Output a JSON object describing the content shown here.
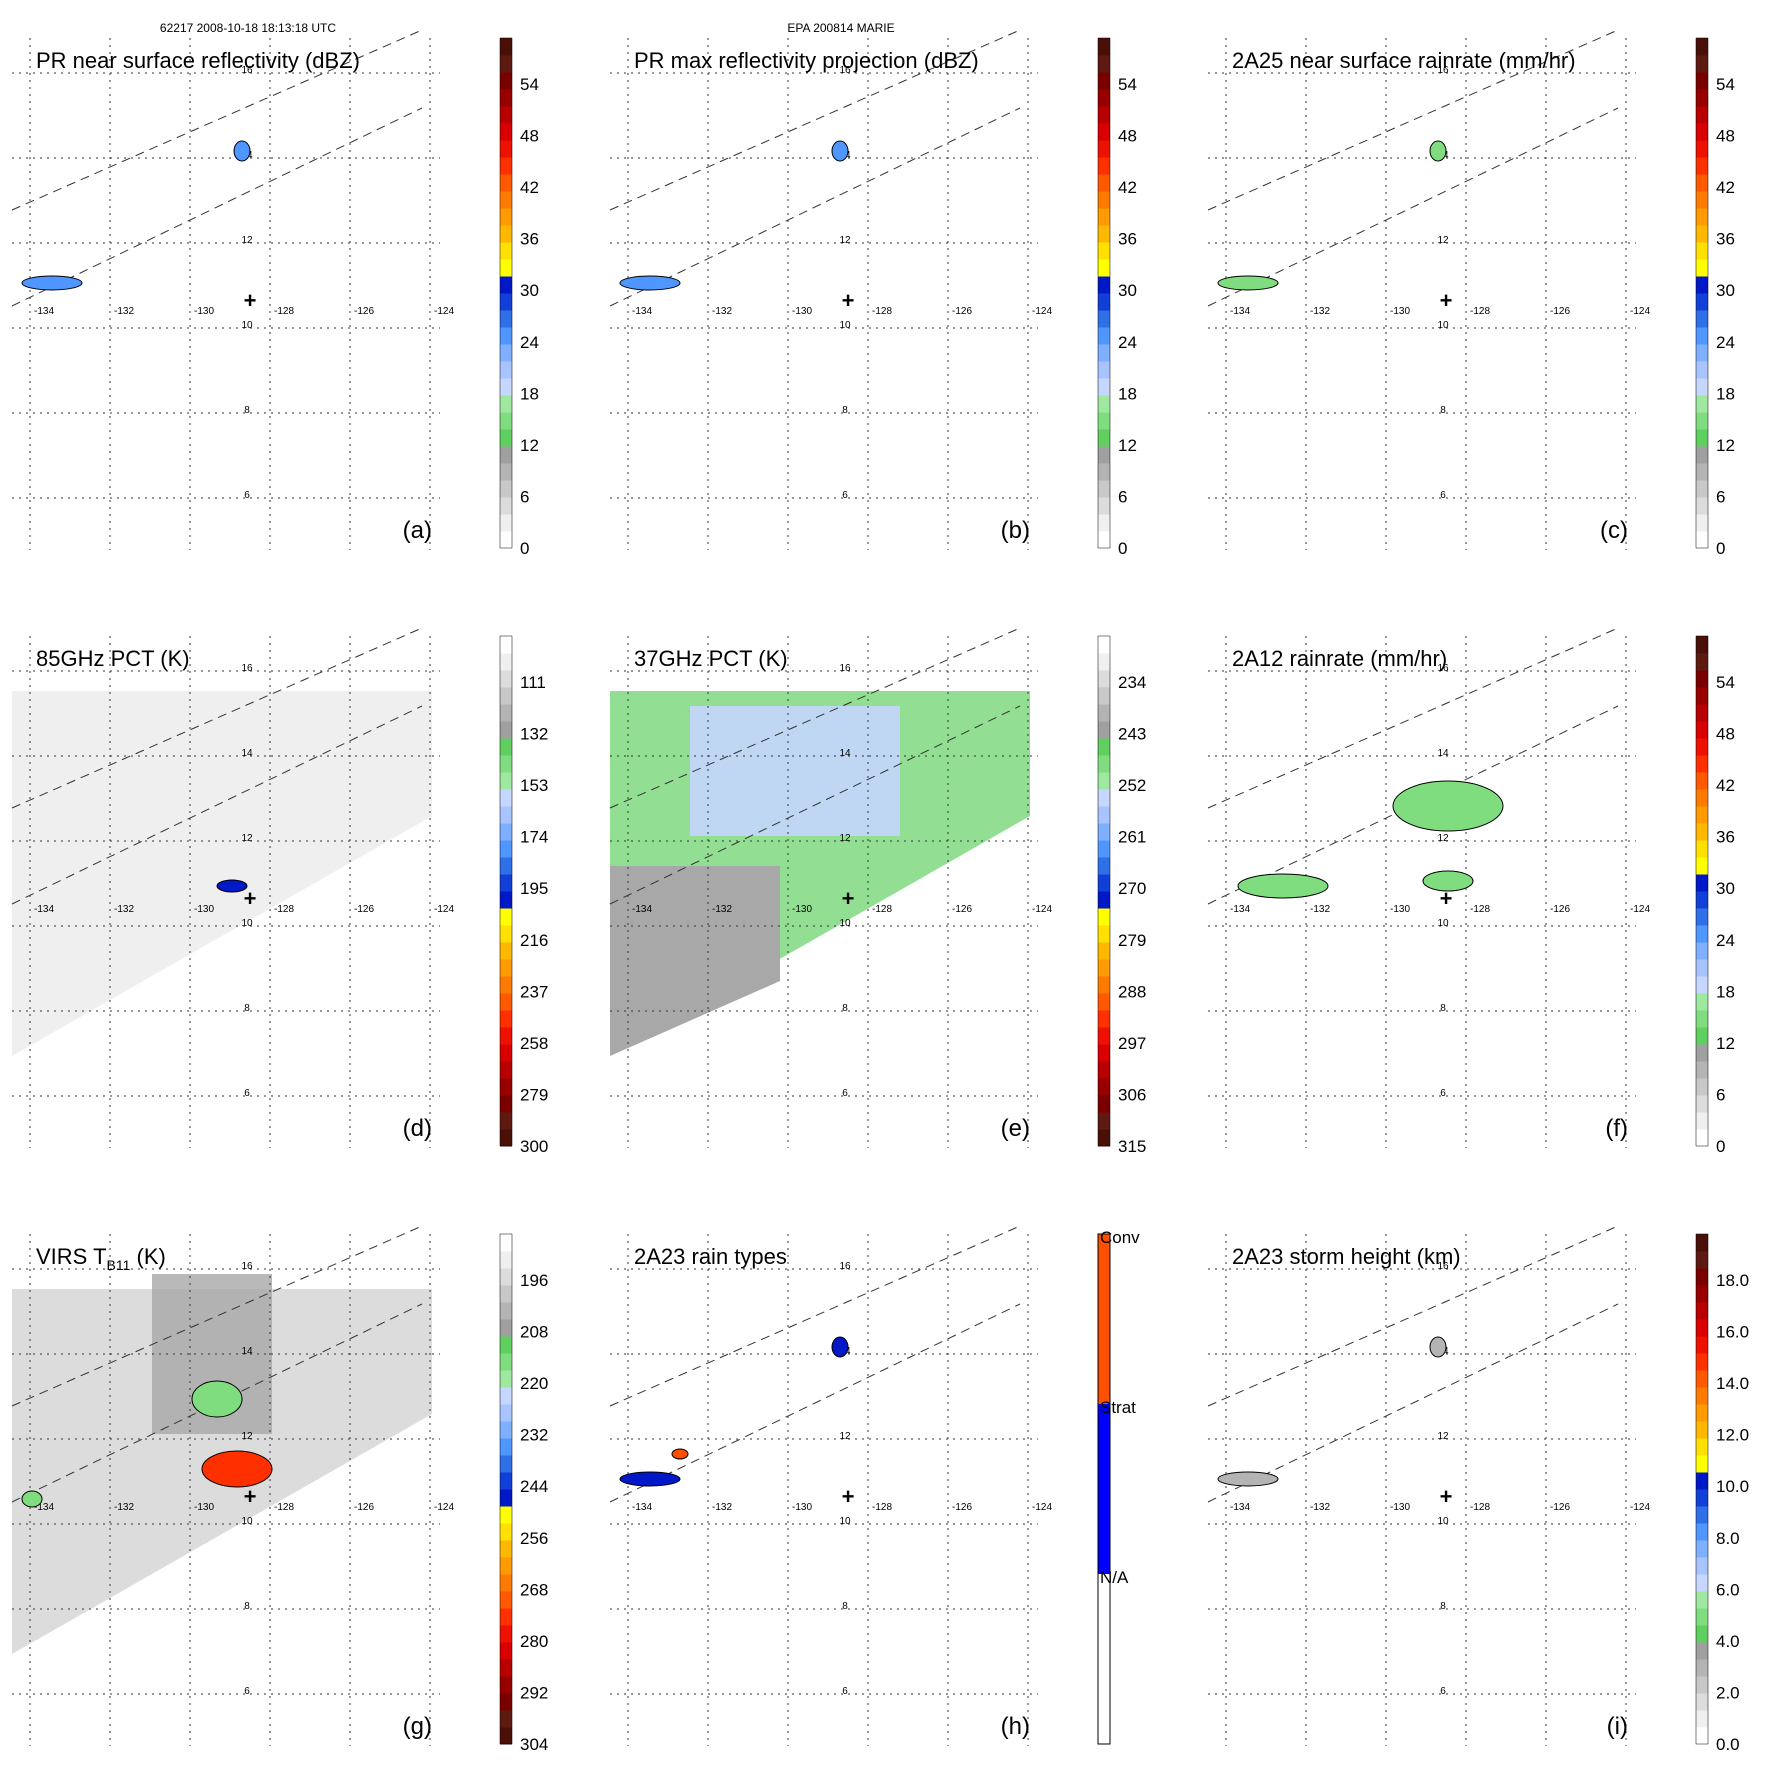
{
  "header": {
    "left": "62217 2008-10-18 18:13:18 UTC",
    "center": "EPA 200814 MARIE"
  },
  "map": {
    "lon_ticks": [
      "-134",
      "-132",
      "-130",
      "-128",
      "-126",
      "-124"
    ],
    "lat_ticks": [
      "16",
      "14",
      "12",
      "10",
      "8",
      "6"
    ],
    "center_marker": "+"
  },
  "colors": {
    "rain_ramp": [
      "#ffffff",
      "#f0f0f0",
      "#dcdcdc",
      "#c8c8c8",
      "#b4b4b4",
      "#a0a0a0",
      "#5fcf5f",
      "#7fdd7f",
      "#9fe89f",
      "#c5d6ff",
      "#a8c4ff",
      "#7fb0ff",
      "#4f96ff",
      "#2f6fe8",
      "#1040d8",
      "#0018c8",
      "#ffff00",
      "#ffe000",
      "#ffb800",
      "#ff9a00",
      "#ff7a00",
      "#ff5a00",
      "#ff3000",
      "#ee1000",
      "#d80000",
      "#b80000",
      "#980000",
      "#7a0000",
      "#5e1a10",
      "#4a1008"
    ],
    "pct_ramp": [
      "#4a1008",
      "#5e1a10",
      "#7a0000",
      "#980000",
      "#b80000",
      "#d80000",
      "#ee1000",
      "#ff3000",
      "#ff5a00",
      "#ff7a00",
      "#ff9a00",
      "#ffb800",
      "#ffe000",
      "#ffff00",
      "#0018c8",
      "#1040d8",
      "#2f6fe8",
      "#4f96ff",
      "#7fb0ff",
      "#a8c4ff",
      "#c5d6ff",
      "#9fe89f",
      "#7fdd7f",
      "#5fcf5f",
      "#a0a0a0",
      "#b4b4b4",
      "#c8c8c8",
      "#dcdcdc",
      "#f0f0f0",
      "#ffffff"
    ],
    "raintype": {
      "na": "#ffffff",
      "strat": "#0000ff",
      "conv": "#ff4f00"
    }
  },
  "panels": [
    {
      "id": "a",
      "title": "PR near surface reflectivity (dBZ)",
      "label": "(a)",
      "colorbar": {
        "labels": [
          "54",
          "48",
          "42",
          "36",
          "30",
          "24",
          "18",
          "12",
          "6",
          "0"
        ],
        "scale": "rain"
      }
    },
    {
      "id": "b",
      "title": "PR max reflectivity projection (dBZ)",
      "label": "(b)",
      "colorbar": {
        "labels": [
          "54",
          "48",
          "42",
          "36",
          "30",
          "24",
          "18",
          "12",
          "6",
          "0"
        ],
        "scale": "rain"
      }
    },
    {
      "id": "c",
      "title": "2A25 near surface rainrate (mm/hr)",
      "label": "(c)",
      "colorbar": {
        "labels": [
          "54",
          "48",
          "42",
          "36",
          "30",
          "24",
          "18",
          "12",
          "6",
          "0"
        ],
        "scale": "rain"
      }
    },
    {
      "id": "d",
      "title": "85GHz PCT (K)",
      "label": "(d)",
      "colorbar": {
        "labels": [
          "111",
          "132",
          "153",
          "174",
          "195",
          "216",
          "237",
          "258",
          "279",
          "300"
        ],
        "scale": "pct"
      }
    },
    {
      "id": "e",
      "title": "37GHz PCT (K)",
      "label": "(e)",
      "colorbar": {
        "labels": [
          "234",
          "243",
          "252",
          "261",
          "270",
          "279",
          "288",
          "297",
          "306",
          "315"
        ],
        "scale": "pct"
      }
    },
    {
      "id": "f",
      "title": "2A12 rainrate (mm/hr)",
      "label": "(f)",
      "colorbar": {
        "labels": [
          "54",
          "48",
          "42",
          "36",
          "30",
          "24",
          "18",
          "12",
          "6",
          "0"
        ],
        "scale": "rain"
      }
    },
    {
      "id": "g",
      "title_main": "VIRS T",
      "title_sub": "B11",
      "title_unit": " (K)",
      "label": "(g)",
      "colorbar": {
        "labels": [
          "196",
          "208",
          "220",
          "232",
          "244",
          "256",
          "268",
          "280",
          "292",
          "304"
        ],
        "scale": "pct"
      }
    },
    {
      "id": "h",
      "title": "2A23 rain types",
      "label": "(h)",
      "colorbar": {
        "labels": [
          "Conv",
          "Strat",
          "N/A"
        ],
        "scale": "raintype"
      }
    },
    {
      "id": "i",
      "title": "2A23 storm height (km)",
      "label": "(i)",
      "colorbar": {
        "labels": [
          "18.0",
          "16.0",
          "14.0",
          "12.0",
          "10.0",
          "8.0",
          "6.0",
          "4.0",
          "2.0",
          "0.0"
        ],
        "scale": "rain"
      }
    }
  ]
}
